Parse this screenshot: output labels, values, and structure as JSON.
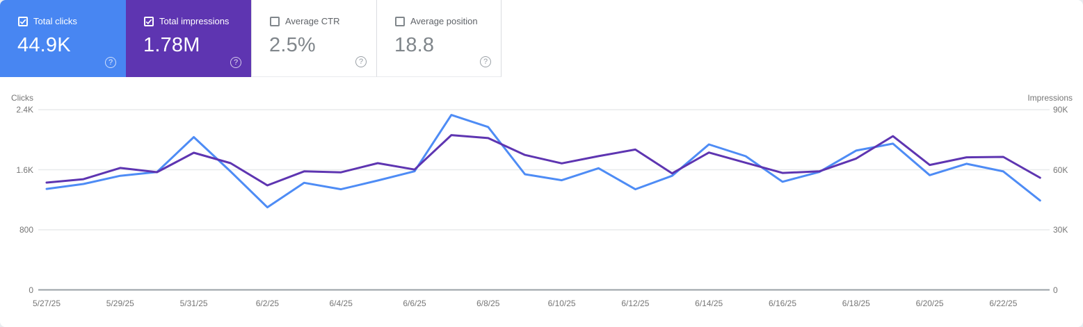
{
  "ui": {
    "help_glyph": "?"
  },
  "cards": [
    {
      "label": "Total clicks",
      "value": "44.9K",
      "checked": true
    },
    {
      "label": "Total impressions",
      "value": "1.78M",
      "checked": true
    },
    {
      "label": "Average CTR",
      "value": "2.5%",
      "checked": false
    },
    {
      "label": "Average position",
      "value": "18.8",
      "checked": false
    }
  ],
  "chart_data": {
    "type": "line",
    "x": [
      "5/27/25",
      "5/28/25",
      "5/29/25",
      "5/30/25",
      "5/31/25",
      "6/1/25",
      "6/2/25",
      "6/3/25",
      "6/4/25",
      "6/5/25",
      "6/6/25",
      "6/7/25",
      "6/8/25",
      "6/9/25",
      "6/10/25",
      "6/11/25",
      "6/12/25",
      "6/13/25",
      "6/14/25",
      "6/15/25",
      "6/16/25",
      "6/17/25",
      "6/18/25",
      "6/19/25",
      "6/20/25",
      "6/21/25",
      "6/22/25",
      "6/23/25"
    ],
    "x_tick_labels": [
      "5/27/25",
      "5/29/25",
      "5/31/25",
      "6/2/25",
      "6/4/25",
      "6/6/25",
      "6/8/25",
      "6/10/25",
      "6/12/25",
      "6/14/25",
      "6/16/25",
      "6/18/25",
      "6/20/25",
      "6/22/25"
    ],
    "series": [
      {
        "name": "Clicks",
        "axis": "left",
        "color": "#4e8cf5",
        "values": [
          1345,
          1410,
          1520,
          1570,
          2035,
          1577,
          1100,
          1426,
          1340,
          1457,
          1580,
          2330,
          2170,
          1540,
          1460,
          1620,
          1340,
          1520,
          1938,
          1780,
          1440,
          1570,
          1855,
          1948,
          1528,
          1680,
          1578,
          1190
        ]
      },
      {
        "name": "Impressions",
        "axis": "right",
        "color": "#5e35b1",
        "values": [
          53600,
          55300,
          60900,
          58800,
          68500,
          63300,
          52200,
          59200,
          58700,
          63300,
          60100,
          77300,
          75800,
          67400,
          63200,
          66800,
          70100,
          58200,
          68600,
          63500,
          58400,
          59200,
          65600,
          76800,
          62400,
          66200,
          66400,
          56000
        ]
      }
    ],
    "left_axis": {
      "title": "Clicks",
      "ticks": [
        "2.4K",
        "1.6K",
        "800",
        "0"
      ],
      "min": 0,
      "max": 2400
    },
    "right_axis": {
      "title": "Impressions",
      "ticks": [
        "90K",
        "60K",
        "30K",
        "0"
      ],
      "min": 0,
      "max": 90000
    },
    "grid": "horizontal",
    "legend": "none"
  },
  "colors": {
    "clicks_card_bg": "#4886f2",
    "impressions_card_bg": "#5e35b1",
    "clicks_line": "#4e8cf5",
    "impressions_line": "#5e35b1",
    "axis_text": "#757575",
    "grid_line": "#e8eaec",
    "axis_line": "#9aa0a6"
  }
}
